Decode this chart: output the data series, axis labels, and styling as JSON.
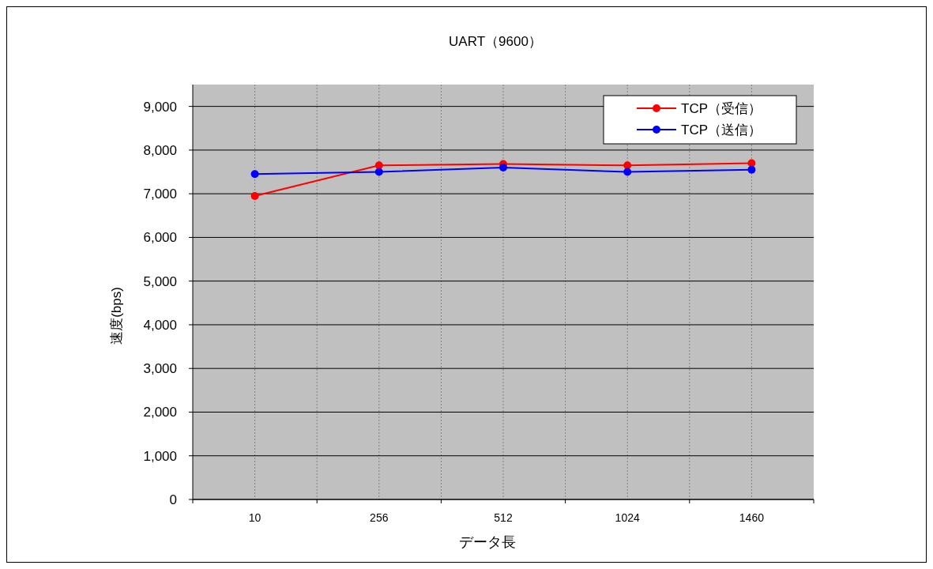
{
  "chart_data": {
    "type": "line",
    "title": "UART（9600）",
    "xlabel": "データ長",
    "ylabel": "速度(bps)",
    "categories": [
      "10",
      "256",
      "512",
      "1024",
      "1460"
    ],
    "series": [
      {
        "name": "TCP（受信）",
        "color": "#ff0000",
        "values": [
          6950,
          7650,
          7680,
          7650,
          7700
        ]
      },
      {
        "name": "TCP（送信）",
        "color": "#0000ff",
        "values": [
          7450,
          7500,
          7600,
          7500,
          7550
        ]
      }
    ],
    "ylim": [
      0,
      9500
    ],
    "yticks": [
      {
        "value": 0,
        "label": "0"
      },
      {
        "value": 1000,
        "label": "1,000"
      },
      {
        "value": 2000,
        "label": "2,000"
      },
      {
        "value": 3000,
        "label": "3,000"
      },
      {
        "value": 4000,
        "label": "4,000"
      },
      {
        "value": 5000,
        "label": "5,000"
      },
      {
        "value": 6000,
        "label": "6,000"
      },
      {
        "value": 7000,
        "label": "7,000"
      },
      {
        "value": 8000,
        "label": "8,000"
      },
      {
        "value": 9000,
        "label": "9,000"
      }
    ],
    "grid": true,
    "legend": "top right",
    "marker": "circle",
    "line_style": "solid"
  }
}
